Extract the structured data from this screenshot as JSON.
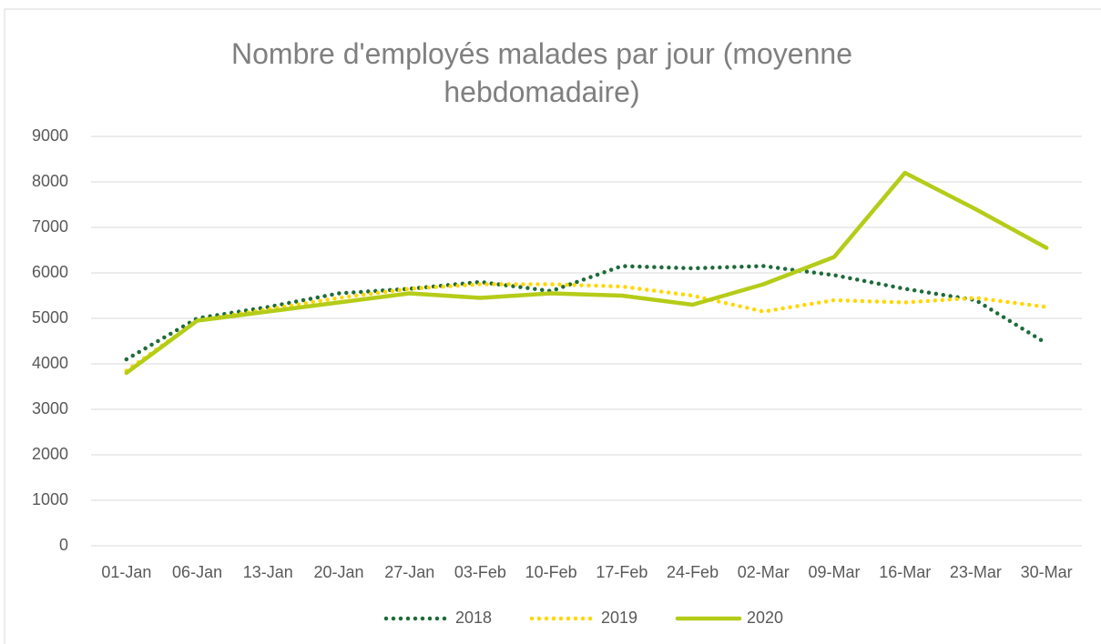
{
  "chart_data": {
    "type": "line",
    "title": "Nombre d'employés malades par jour (moyenne hebdomadaire)",
    "categories": [
      "01-Jan",
      "06-Jan",
      "13-Jan",
      "20-Jan",
      "27-Jan",
      "03-Feb",
      "10-Feb",
      "17-Feb",
      "24-Feb",
      "02-Mar",
      "09-Mar",
      "16-Mar",
      "23-Mar",
      "30-Mar"
    ],
    "series": [
      {
        "name": "2018",
        "color": "#1e6b3a",
        "style": "dotted",
        "values": [
          4100,
          5000,
          5250,
          5550,
          5650,
          5800,
          5600,
          6150,
          6100,
          6150,
          5950,
          5650,
          5400,
          4450
        ]
      },
      {
        "name": "2019",
        "color": "#ffd700",
        "style": "dotted",
        "values": [
          3850,
          4950,
          5200,
          5450,
          5650,
          5750,
          5750,
          5700,
          5500,
          5150,
          5400,
          5350,
          5450,
          5250
        ]
      },
      {
        "name": "2020",
        "color": "#b5cc18",
        "style": "solid",
        "values": [
          3800,
          4950,
          5150,
          5350,
          5550,
          5450,
          5550,
          5500,
          5300,
          5750,
          6350,
          8200,
          7400,
          6550
        ]
      }
    ],
    "ylim": [
      0,
      9000
    ],
    "yticks": [
      0,
      1000,
      2000,
      3000,
      4000,
      5000,
      6000,
      7000,
      8000,
      9000
    ],
    "grid": true,
    "legend": "bottom"
  }
}
